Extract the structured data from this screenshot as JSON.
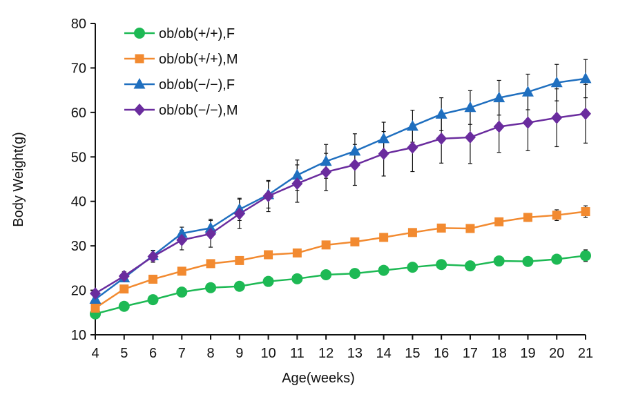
{
  "chart_data": {
    "type": "line",
    "title": "",
    "xlabel": "Age(weeks)",
    "ylabel": "Body Weight(g)",
    "x": [
      4,
      5,
      6,
      7,
      8,
      9,
      10,
      11,
      12,
      13,
      14,
      15,
      16,
      17,
      18,
      19,
      20,
      21
    ],
    "xlim": [
      4,
      21
    ],
    "ylim": [
      10,
      80
    ],
    "yticks": [
      10,
      20,
      30,
      40,
      50,
      60,
      70,
      80
    ],
    "grid": false,
    "legend_position": "top-left",
    "series": [
      {
        "name": "ob/ob(+/+),F",
        "color": "#1db954",
        "marker": "circle",
        "values": [
          14.7,
          16.4,
          17.9,
          19.6,
          20.6,
          20.9,
          22.0,
          22.6,
          23.5,
          23.8,
          24.5,
          25.2,
          25.8,
          25.5,
          26.6,
          26.5,
          27.0,
          27.8
        ],
        "errors": [
          0.5,
          0.5,
          0.5,
          0.5,
          0.5,
          0.5,
          0.6,
          0.6,
          0.6,
          0.6,
          0.6,
          0.7,
          0.7,
          0.7,
          0.8,
          0.8,
          0.9,
          1.3
        ]
      },
      {
        "name": "ob/ob(+/+),M",
        "color": "#f28a30",
        "marker": "square",
        "values": [
          16.0,
          20.3,
          22.5,
          24.3,
          26.0,
          26.7,
          28.0,
          28.4,
          30.2,
          30.9,
          31.9,
          33.0,
          34.0,
          33.9,
          35.4,
          36.4,
          36.9,
          37.7
        ],
        "errors": [
          0.5,
          0.5,
          0.5,
          0.5,
          0.5,
          0.5,
          0.5,
          0.5,
          0.6,
          0.6,
          0.6,
          0.6,
          0.8,
          0.6,
          0.6,
          0.9,
          1.2,
          1.3
        ]
      },
      {
        "name": "ob/ob(−/−),F",
        "color": "#1f6fbf",
        "marker": "triangle",
        "values": [
          18.0,
          22.8,
          27.8,
          32.8,
          34.0,
          38.2,
          41.5,
          45.9,
          49.0,
          51.3,
          54.1,
          56.9,
          59.6,
          61.1,
          63.3,
          64.6,
          66.7,
          67.6
        ],
        "errors": [
          0.8,
          0.8,
          1.2,
          1.4,
          2.0,
          2.5,
          3.0,
          3.4,
          3.8,
          3.9,
          3.7,
          3.6,
          3.7,
          3.8,
          3.9,
          4.0,
          4.1,
          4.3
        ]
      },
      {
        "name": "ob/ob(−/−),M",
        "color": "#6a2c9e",
        "marker": "diamond",
        "values": [
          19.3,
          23.2,
          27.6,
          31.3,
          32.7,
          37.2,
          41.2,
          44.0,
          46.6,
          48.2,
          50.7,
          52.1,
          54.1,
          54.4,
          56.8,
          57.7,
          58.8,
          59.7
        ],
        "errors": [
          0.7,
          1.0,
          1.3,
          2.2,
          3.0,
          3.3,
          3.5,
          4.2,
          4.2,
          4.6,
          5.0,
          5.4,
          5.5,
          5.9,
          5.8,
          6.3,
          6.5,
          6.6
        ]
      }
    ]
  }
}
